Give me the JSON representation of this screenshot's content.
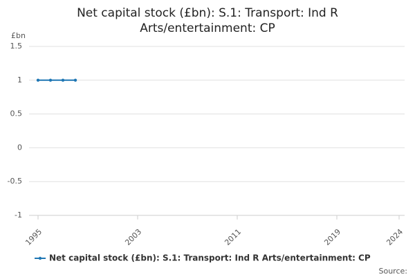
{
  "chart_data": {
    "type": "line",
    "title": "Net capital stock (£bn): S.1: Transport: Ind R Arts/entertainment: CP",
    "y_label": "£bn",
    "source": "Source:",
    "x": [
      1995,
      1996,
      1997,
      1998
    ],
    "series": [
      {
        "name": "Net capital stock (£bn): S.1: Transport: Ind R Arts/entertainment: CP",
        "color": "#1f77b4",
        "values": [
          1,
          1,
          1,
          1
        ]
      }
    ],
    "xlim": [
      1995,
      2024
    ],
    "xticks": [
      1995,
      2003,
      2011,
      2019,
      2024
    ],
    "ylim": [
      -1,
      1.5
    ],
    "yticks": [
      1.5,
      1,
      0.5,
      0,
      -0.5,
      -1
    ],
    "grid": true
  }
}
